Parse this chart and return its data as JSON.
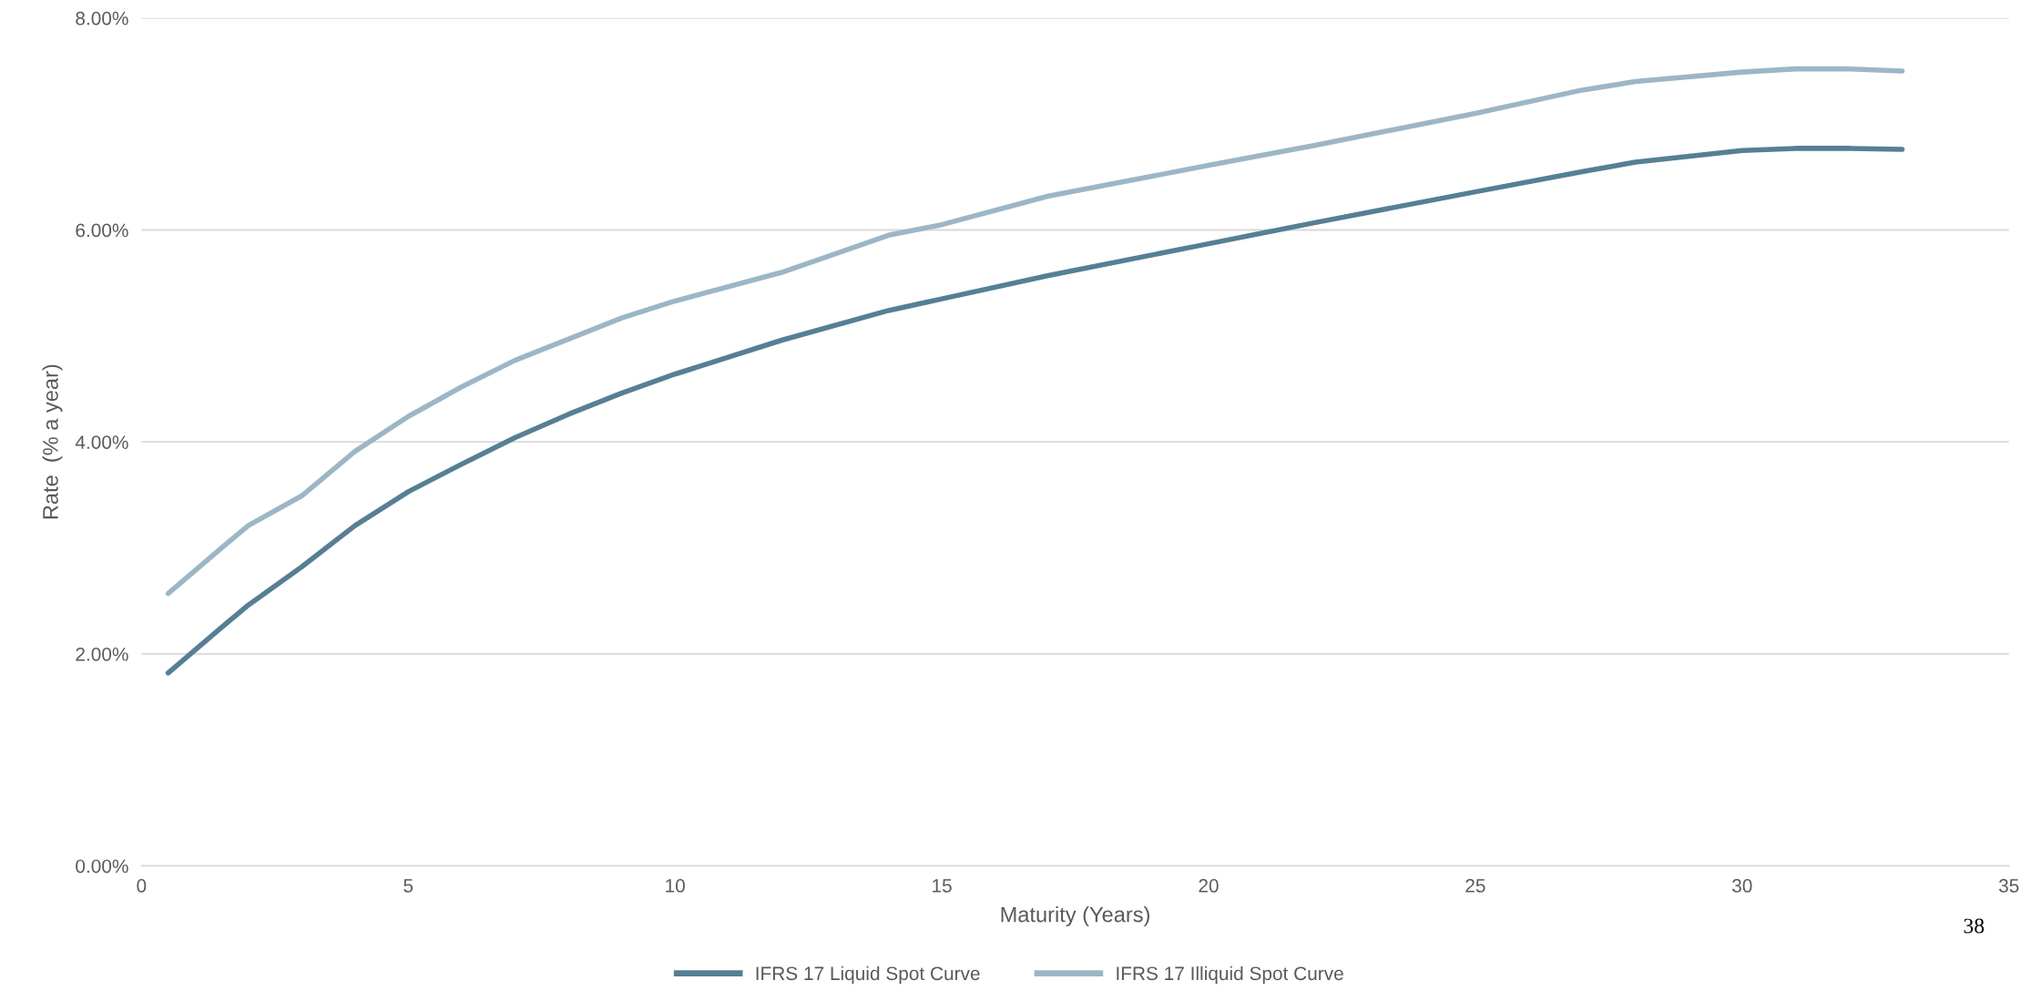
{
  "chart_data": {
    "type": "line",
    "xlabel": "Maturity (Years)",
    "ylabel": "Rate  (% a year)",
    "xlim": [
      0,
      35
    ],
    "xticks": [
      0,
      5,
      10,
      15,
      20,
      25,
      30,
      35
    ],
    "ylim": [
      0,
      8
    ],
    "yticks": [
      {
        "value": 0,
        "label": "0.00%"
      },
      {
        "value": 2,
        "label": "2.00%"
      },
      {
        "value": 4,
        "label": "4.00%"
      },
      {
        "value": 6,
        "label": "6.00%"
      },
      {
        "value": 8,
        "label": "8.00%"
      }
    ],
    "grid": "y",
    "legend": "bottom",
    "line_style": "solid",
    "marker": "none",
    "annotations": [
      "38"
    ],
    "series": [
      {
        "name": "IFRS 17 Liquid Spot Curve",
        "color": "#567f95",
        "x": [
          0.5,
          1.5,
          2,
          3,
          4,
          5,
          6,
          7,
          8,
          9,
          10,
          12,
          14,
          15,
          17,
          20,
          22,
          25,
          27,
          28,
          30,
          31,
          32,
          33
        ],
        "values": [
          1.82,
          2.25,
          2.46,
          2.82,
          3.21,
          3.53,
          3.79,
          4.04,
          4.26,
          4.46,
          4.64,
          4.96,
          5.24,
          5.35,
          5.57,
          5.87,
          6.07,
          6.36,
          6.55,
          6.64,
          6.75,
          6.77,
          6.77,
          6.76
        ]
      },
      {
        "name": "IFRS 17 Illiquid Spot Curve",
        "color": "#9cb6c6",
        "x": [
          0.5,
          1.5,
          2,
          3,
          4,
          5,
          6,
          7,
          8,
          9,
          10,
          12,
          14,
          15,
          17,
          20,
          22,
          25,
          27,
          28,
          30,
          31,
          32,
          33
        ],
        "values": [
          2.57,
          3.0,
          3.21,
          3.49,
          3.91,
          4.24,
          4.52,
          4.77,
          4.97,
          5.17,
          5.33,
          5.6,
          5.95,
          6.05,
          6.32,
          6.61,
          6.8,
          7.1,
          7.32,
          7.4,
          7.49,
          7.52,
          7.52,
          7.5
        ]
      }
    ]
  }
}
